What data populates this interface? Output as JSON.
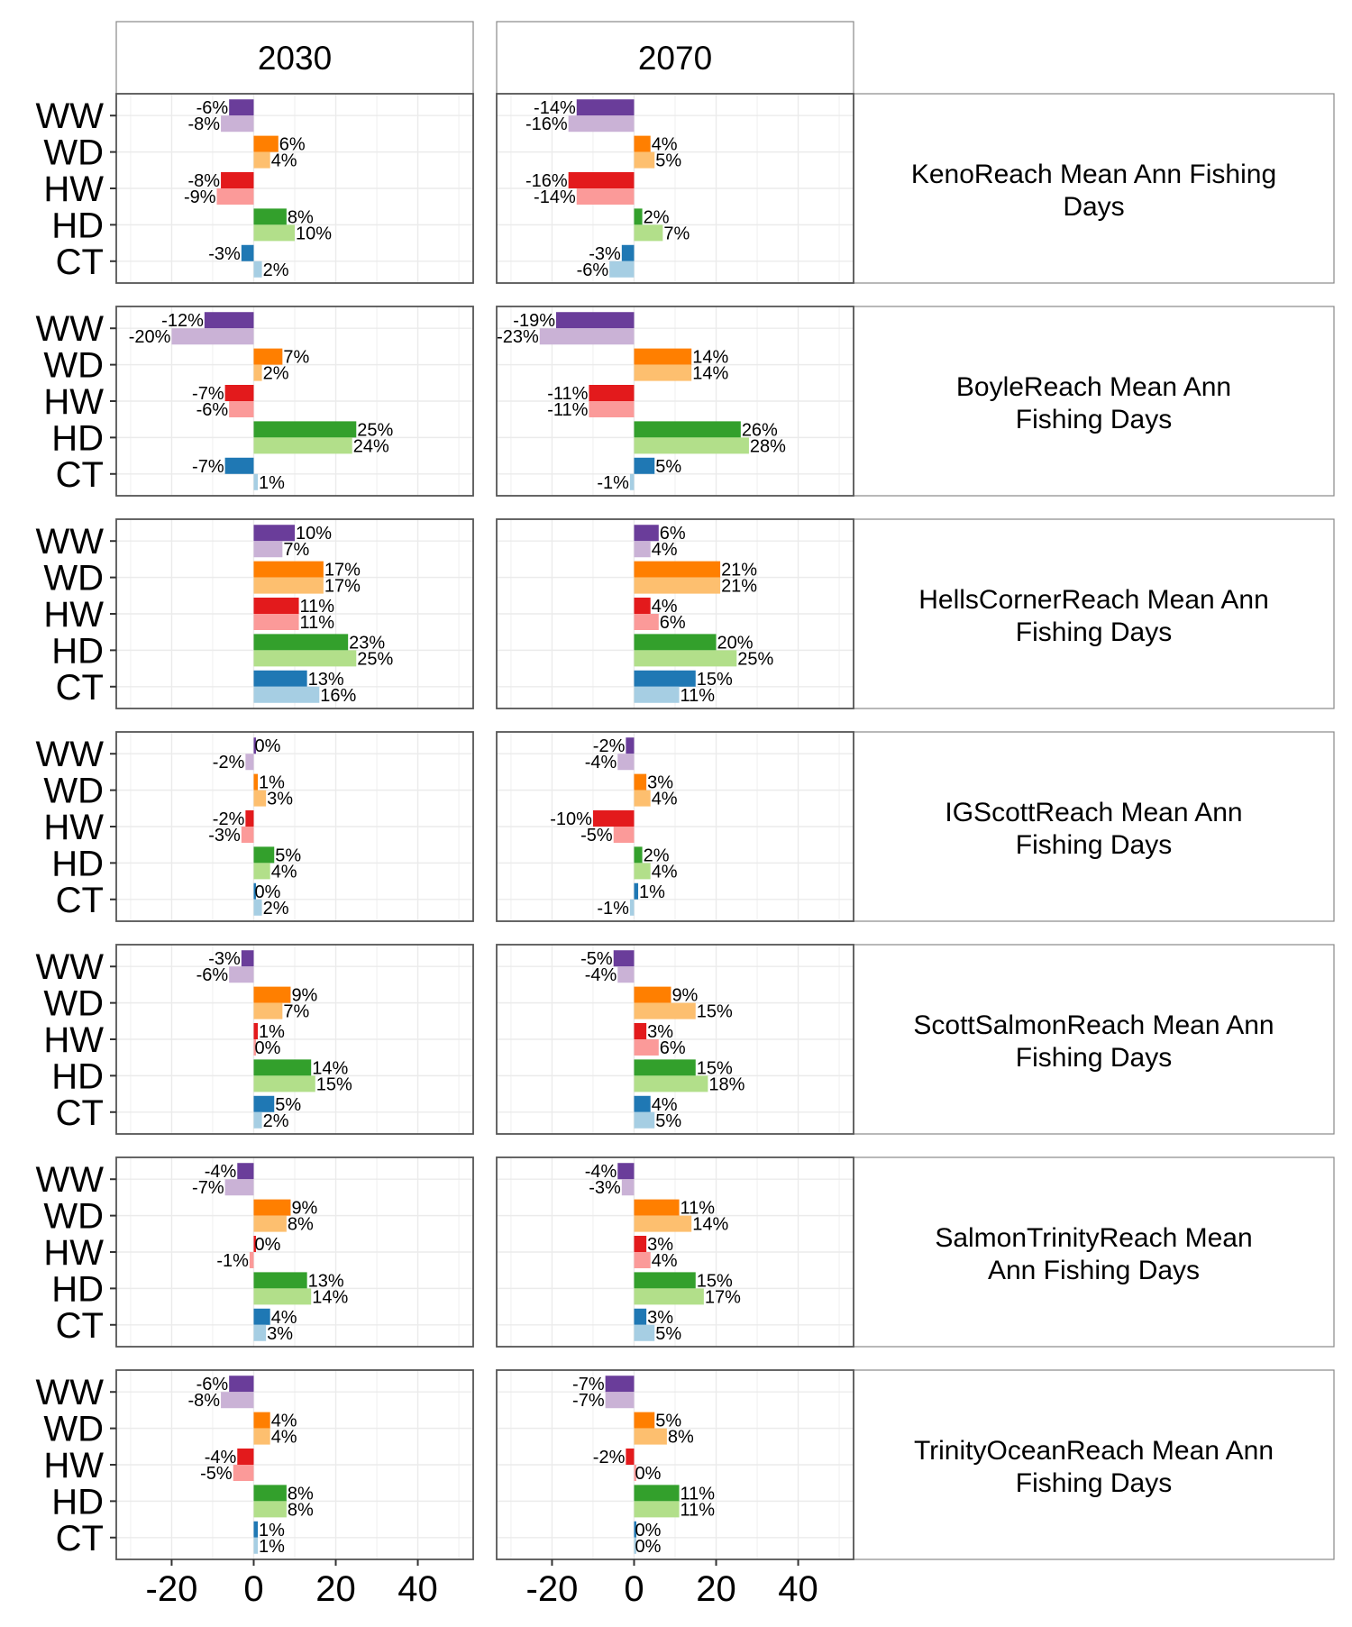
{
  "colors": {
    "WW": [
      "#6a3d9a",
      "#cab2d6"
    ],
    "WD": [
      "#ff7f00",
      "#fdbf6f"
    ],
    "HW": [
      "#e31a1c",
      "#fb9a99"
    ],
    "HD": [
      "#33a02c",
      "#b2df8a"
    ],
    "CT": [
      "#1f78b4",
      "#a6cee3"
    ],
    "panel_border": "#555555",
    "grid": "#ebebeb"
  },
  "chart_data": {
    "type": "bar",
    "orientation": "horizontal",
    "columns": [
      "2030",
      "2070"
    ],
    "categories": [
      "WW",
      "WD",
      "HW",
      "HD",
      "CT"
    ],
    "x_ticks": [
      -20,
      0,
      20,
      40
    ],
    "xlim": [
      -33.5,
      53.5
    ],
    "grid": true,
    "rows": [
      {
        "label": "KenoReach Mean Ann Fishing Days",
        "panels": [
          [
            [
              -6,
              -8
            ],
            [
              6,
              4
            ],
            [
              -8,
              -9
            ],
            [
              8,
              10
            ],
            [
              -3,
              2
            ]
          ],
          [
            [
              -14,
              -16
            ],
            [
              4,
              5
            ],
            [
              -16,
              -14
            ],
            [
              2,
              7
            ],
            [
              -3,
              -6
            ]
          ]
        ]
      },
      {
        "label": "BoyleReach Mean Ann Fishing Days",
        "panels": [
          [
            [
              -12,
              -20
            ],
            [
              7,
              2
            ],
            [
              -7,
              -6
            ],
            [
              25,
              24
            ],
            [
              -7,
              1
            ]
          ],
          [
            [
              -19,
              -23
            ],
            [
              14,
              14
            ],
            [
              -11,
              -11
            ],
            [
              26,
              28
            ],
            [
              5,
              -1
            ]
          ]
        ]
      },
      {
        "label": "HellsCornerReach Mean Ann Fishing Days",
        "panels": [
          [
            [
              10,
              7
            ],
            [
              17,
              17
            ],
            [
              11,
              11
            ],
            [
              23,
              25
            ],
            [
              13,
              16
            ]
          ],
          [
            [
              6,
              4
            ],
            [
              21,
              21
            ],
            [
              4,
              6
            ],
            [
              20,
              25
            ],
            [
              15,
              11
            ]
          ]
        ]
      },
      {
        "label": "IGScottReach Mean Ann Fishing Days",
        "panels": [
          [
            [
              0,
              -2
            ],
            [
              1,
              3
            ],
            [
              -2,
              -3
            ],
            [
              5,
              4
            ],
            [
              0,
              2
            ]
          ],
          [
            [
              -2,
              -4
            ],
            [
              3,
              4
            ],
            [
              -10,
              -5
            ],
            [
              2,
              4
            ],
            [
              1,
              -1
            ]
          ]
        ]
      },
      {
        "label": "ScottSalmonReach Mean Ann Fishing Days",
        "panels": [
          [
            [
              -3,
              -6
            ],
            [
              9,
              7
            ],
            [
              1,
              0
            ],
            [
              14,
              15
            ],
            [
              5,
              2
            ]
          ],
          [
            [
              -5,
              -4
            ],
            [
              9,
              15
            ],
            [
              3,
              6
            ],
            [
              15,
              18
            ],
            [
              4,
              5
            ]
          ]
        ]
      },
      {
        "label": "SalmonTrinityReach Mean Ann Fishing Days",
        "panels": [
          [
            [
              -4,
              -7
            ],
            [
              9,
              8
            ],
            [
              0,
              -1
            ],
            [
              13,
              14
            ],
            [
              4,
              3
            ]
          ],
          [
            [
              -4,
              -3
            ],
            [
              11,
              14
            ],
            [
              3,
              4
            ],
            [
              15,
              17
            ],
            [
              3,
              5
            ]
          ]
        ]
      },
      {
        "label": "TrinityOceanReach Mean Ann Fishing Days",
        "panels": [
          [
            [
              -6,
              -8
            ],
            [
              4,
              4
            ],
            [
              -4,
              -5
            ],
            [
              8,
              8
            ],
            [
              1,
              1
            ]
          ],
          [
            [
              -7,
              -7
            ],
            [
              5,
              8
            ],
            [
              -2,
              0
            ],
            [
              11,
              11
            ],
            [
              0,
              0
            ]
          ]
        ]
      }
    ]
  }
}
